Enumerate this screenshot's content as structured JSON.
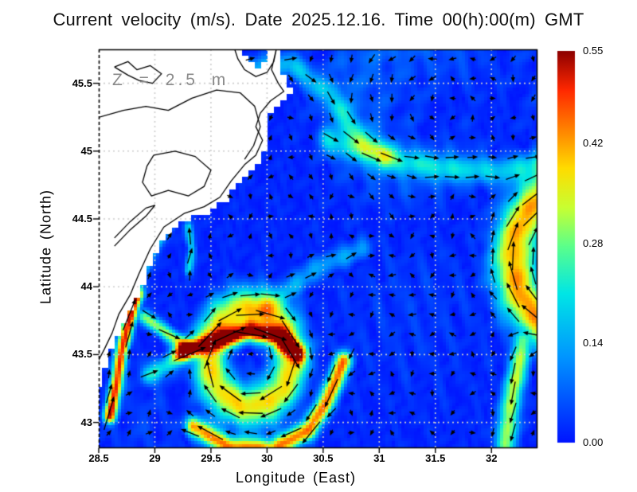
{
  "title": "Current velocity (m/s). Date 2025.12.16. Time 00(h):00(m) GMT",
  "annotation": "Z = 2.5 m",
  "axes": {
    "xlabel": "Longitude (East)",
    "ylabel": "Latitude (North)",
    "x_ticks": {
      "labels": [
        "28.5",
        "29",
        "29.5",
        "30",
        "30.5",
        "31",
        "31.5",
        "32"
      ],
      "values": [
        28.5,
        29,
        29.5,
        30,
        30.5,
        31,
        31.5,
        32
      ]
    },
    "y_ticks": {
      "labels": [
        "43",
        "43.5",
        "44",
        "44.5",
        "45",
        "45.5"
      ],
      "values": [
        43,
        43.5,
        44,
        44.5,
        45,
        45.5
      ]
    },
    "x_range": [
      28.5,
      32.41
    ],
    "y_range": [
      42.81,
      45.75
    ],
    "grid": "dotted"
  },
  "colorbar": {
    "ticks": {
      "labels": [
        "0.00",
        "0.14",
        "0.28",
        "0.42",
        "0.55"
      ],
      "values": [
        0,
        0.14,
        0.28,
        0.42,
        0.55
      ]
    },
    "min": 0,
    "max": 0.55,
    "units": "m/s"
  },
  "chart_data": {
    "type": "heatmap",
    "subtype": "vector-field-velocity-map",
    "field_quantity": "current speed (m/s)",
    "arrow_grid_step_deg": [
      0.18,
      0.145
    ],
    "speed_scale": [
      0,
      0.55
    ],
    "colormap": {
      "name": "jet",
      "stops": [
        [
          0,
          "#0014ff"
        ],
        [
          0.22,
          "#0096ff"
        ],
        [
          0.38,
          "#00e6e6"
        ],
        [
          0.5,
          "#5aff8c"
        ],
        [
          0.6,
          "#c8ff32"
        ],
        [
          0.7,
          "#ffdc00"
        ],
        [
          0.8,
          "#ff8200"
        ],
        [
          0.9,
          "#ff2800"
        ],
        [
          1,
          "#8c0000"
        ]
      ]
    },
    "colors": {
      "sea_background": "#0033ff",
      "land": "#ffffff",
      "coastline": "#000000",
      "grid": "#cdcdcd",
      "arrows": "#000000",
      "annotation_gray": "#8a8a8a"
    },
    "flow_features": {
      "vortices": [
        {
          "name": "central-eddy",
          "center": [
            29.85,
            43.48
          ],
          "radius": 0.36,
          "ring_width": 0.16,
          "peak_speed": 0.38,
          "rotation": "cw"
        },
        {
          "name": "east-edge-eddy",
          "center": [
            32.72,
            44.2
          ],
          "radius": 0.52,
          "ring_width": 0.2,
          "peak_speed": 0.42,
          "rotation": "cw"
        },
        {
          "name": "northeast-gyre",
          "center": [
            31.3,
            45.35
          ],
          "radius": 0.55,
          "ring_width": 0.35,
          "peak_speed": 0.06,
          "rotation": "ccw"
        }
      ],
      "jets": [
        {
          "name": "west-coastal-jet",
          "path": [
            [
              28.6,
              43.05
            ],
            [
              28.66,
              43.3
            ],
            [
              28.7,
              43.5
            ],
            [
              28.76,
              43.72
            ],
            [
              28.84,
              43.94
            ]
          ],
          "peak_speed": 0.5,
          "width": 0.055
        },
        {
          "name": "west-coastal-jet-north",
          "path": [
            [
              28.8,
              43.96
            ],
            [
              28.9,
              44.15
            ],
            [
              29.0,
              44.32
            ],
            [
              29.12,
              44.47
            ]
          ],
          "peak_speed": 0.22,
          "width": 0.06
        },
        {
          "name": "central-east-jet",
          "path": [
            [
              29.25,
              43.52
            ],
            [
              29.55,
              43.6
            ],
            [
              29.85,
              43.67
            ],
            [
              30.1,
              43.63
            ],
            [
              30.28,
              43.5
            ]
          ],
          "peak_speed": 0.48,
          "width": 0.07
        },
        {
          "name": "south-return-jet",
          "path": [
            [
              30.68,
              43.45
            ],
            [
              30.55,
              43.18
            ],
            [
              30.38,
              42.95
            ],
            [
              30.05,
              42.8
            ],
            [
              29.65,
              42.82
            ],
            [
              29.35,
              42.97
            ]
          ],
          "peak_speed": 0.44,
          "width": 0.075
        },
        {
          "name": "north-basin-east-jet",
          "path": [
            [
              30.55,
              45.08
            ],
            [
              31.05,
              44.95
            ],
            [
              31.6,
              44.87
            ],
            [
              32.1,
              44.85
            ],
            [
              32.45,
              44.92
            ]
          ],
          "peak_speed": 0.17,
          "width": 0.1
        },
        {
          "name": "danube-outflow-jet",
          "path": [
            [
              29.82,
              45.6
            ],
            [
              30.22,
              45.64
            ],
            [
              30.55,
              45.42
            ],
            [
              30.8,
              45.12
            ],
            [
              31.05,
              44.97
            ]
          ],
          "peak_speed": 0.16,
          "width": 0.09
        },
        {
          "name": "east-edge-south-jet",
          "path": [
            [
              32.28,
              43.6
            ],
            [
              32.2,
              43.25
            ],
            [
              32.12,
              42.85
            ]
          ],
          "peak_speed": 0.32,
          "width": 0.09
        },
        {
          "name": "razim-coast-jet",
          "path": [
            [
              28.9,
              44.71
            ],
            [
              29.18,
              44.75
            ],
            [
              29.42,
              44.69
            ]
          ],
          "peak_speed": 0.2,
          "width": 0.05
        },
        {
          "name": "delta-coast-jet",
          "path": [
            [
              29.3,
              44.62
            ],
            [
              29.55,
              44.78
            ],
            [
              29.72,
              44.92
            ],
            [
              29.82,
              45.05
            ]
          ],
          "peak_speed": 0.3,
          "width": 0.05
        },
        {
          "name": "northeast-outflow-band",
          "path": [
            [
              29.98,
              43.82
            ],
            [
              30.25,
              44.02
            ],
            [
              30.55,
              44.18
            ],
            [
              30.85,
              44.28
            ]
          ],
          "peak_speed": 0.14,
          "width": 0.09
        },
        {
          "name": "southwest-arc-link",
          "path": [
            [
              28.95,
              43.35
            ],
            [
              29.1,
              43.42
            ],
            [
              29.25,
              43.52
            ]
          ],
          "peak_speed": 0.22,
          "width": 0.07
        },
        {
          "name": "coast-to-eddy-link",
          "path": [
            [
              28.9,
              43.78
            ],
            [
              29.1,
              43.66
            ],
            [
              29.3,
              43.56
            ]
          ],
          "peak_speed": 0.3,
          "width": 0.055
        },
        {
          "name": "mid-west-streak",
          "path": [
            [
              29.3,
              44.12
            ],
            [
              29.33,
              44.28
            ],
            [
              29.3,
              44.44
            ]
          ],
          "peak_speed": 0.2,
          "width": 0.04
        }
      ],
      "drifts": [
        {
          "name": "north-basin-south-drift",
          "center": [
            31.8,
            45.55
          ],
          "u": -0.008,
          "v": -0.05,
          "radius": 0.75
        },
        {
          "name": "mid-basin-west-drift",
          "center": [
            31.3,
            43.9
          ],
          "u": -0.03,
          "v": -0.005,
          "radius": 0.8
        },
        {
          "name": "southwest-corner-drift",
          "center": [
            28.9,
            42.95
          ],
          "u": 0.025,
          "v": 0.02,
          "radius": 0.45
        }
      ]
    },
    "geography": {
      "coastline": [
        [
          29.7,
          45.78
        ],
        [
          29.74,
          45.68
        ],
        [
          29.8,
          45.6
        ],
        [
          29.9,
          45.55
        ],
        [
          30.0,
          45.58
        ],
        [
          30.06,
          45.66
        ],
        [
          30.09,
          45.78
        ],
        [
          30.04,
          45.6
        ],
        [
          30.1,
          45.5
        ],
        [
          30.15,
          45.44
        ],
        [
          30.03,
          45.37
        ],
        [
          29.94,
          45.28
        ],
        [
          29.9,
          45.18
        ],
        [
          29.96,
          45.08
        ],
        [
          29.9,
          44.97
        ],
        [
          29.8,
          44.9
        ],
        [
          29.68,
          44.78
        ],
        [
          29.58,
          44.66
        ],
        [
          29.44,
          44.59
        ],
        [
          29.26,
          44.54
        ],
        [
          29.08,
          44.44
        ],
        [
          28.96,
          44.28
        ],
        [
          28.86,
          44.1
        ],
        [
          28.78,
          43.94
        ],
        [
          28.68,
          43.8
        ],
        [
          28.62,
          43.66
        ],
        [
          28.55,
          43.54
        ],
        [
          28.5,
          43.46
        ],
        [
          28.44,
          43.3
        ]
      ],
      "inland_contours": [
        [
          [
            28.46,
            45.24
          ],
          [
            28.72,
            45.3
          ],
          [
            28.92,
            45.33
          ],
          [
            29.12,
            45.3
          ],
          [
            29.33,
            45.39
          ],
          [
            29.55,
            45.45
          ],
          [
            29.76,
            45.43
          ],
          [
            29.89,
            45.33
          ],
          [
            29.94,
            45.18
          ],
          [
            29.88,
            45.04
          ],
          [
            29.8,
            44.94
          ]
        ],
        [
          [
            28.64,
            45.62
          ],
          [
            28.76,
            45.66
          ],
          [
            28.84,
            45.6
          ],
          [
            28.96,
            45.63
          ],
          [
            29.06,
            45.57
          ],
          [
            28.98,
            45.5
          ],
          [
            28.86,
            45.52
          ],
          [
            28.76,
            45.56
          ],
          [
            28.64,
            45.62
          ]
        ],
        [
          [
            28.99,
            44.97
          ],
          [
            29.18,
            45.0
          ],
          [
            29.36,
            44.96
          ],
          [
            29.5,
            44.86
          ],
          [
            29.44,
            44.74
          ],
          [
            29.3,
            44.67
          ],
          [
            29.12,
            44.71
          ],
          [
            28.97,
            44.67
          ],
          [
            28.89,
            44.77
          ],
          [
            28.93,
            44.89
          ],
          [
            28.99,
            44.97
          ]
        ],
        [
          [
            28.64,
            44.3
          ],
          [
            28.78,
            44.42
          ],
          [
            28.92,
            44.52
          ],
          [
            29.0,
            44.6
          ],
          [
            28.92,
            44.58
          ],
          [
            28.78,
            44.48
          ],
          [
            28.64,
            44.36
          ]
        ]
      ]
    }
  }
}
